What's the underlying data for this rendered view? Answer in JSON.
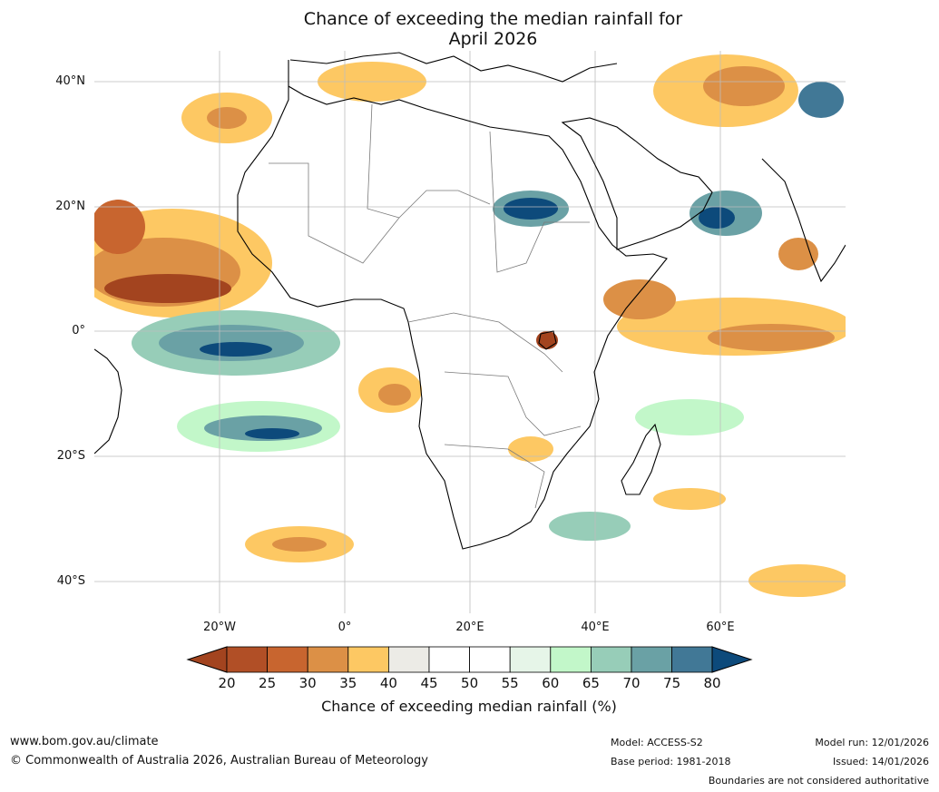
{
  "title": {
    "line1": "Chance of exceeding the median rainfall for",
    "line2": "April 2026"
  },
  "map": {
    "lat_labels": [
      "40°N",
      "20°N",
      "0°",
      "20°S",
      "40°S"
    ],
    "lon_labels": [
      "20°W",
      "0°",
      "20°E",
      "40°E",
      "60°E"
    ],
    "colors": {
      "ocean": "#ffffff",
      "grid": "#bdbdbd",
      "coast": "#000000",
      "border": "#7a7a7a",
      "dry_strong": "#a3441f",
      "dry_mid": "#c8652f",
      "dry_light": "#dc9046",
      "dry_pale": "#fdc863",
      "neutral": "#ecebe6",
      "wet_pale": "#e6f5e8",
      "wet_light": "#c2f7c9",
      "wet_mid": "#97cdb8",
      "wet_strong": "#6aa1a5",
      "wet_deep": "#417896",
      "wet_max": "#0d4a7b"
    }
  },
  "colorbar": {
    "ticks": [
      "20",
      "25",
      "30",
      "35",
      "40",
      "45",
      "50",
      "55",
      "60",
      "65",
      "70",
      "75",
      "80"
    ],
    "colors": [
      "#a3441f",
      "#b14f26",
      "#c8652f",
      "#dc9046",
      "#fdc863",
      "#ecebe6",
      "#ffffff",
      "#ffffff",
      "#e6f5e8",
      "#c2f7c9",
      "#97cdb8",
      "#6aa1a5",
      "#417896",
      "#0d4a7b"
    ],
    "label": "Chance of exceeding median rainfall (%)"
  },
  "footer": {
    "website": "www.bom.gov.au/climate",
    "copyright": "© Commonwealth of Australia 2026, Australian Bureau of Meteorology",
    "model": "Model: ACCESS-S2",
    "base_period": "Base period: 1981-2018",
    "model_run": "Model run: 12/01/2026",
    "issued": "Issued: 14/01/2026",
    "disclaimer": "Boundaries are not considered authoritative"
  }
}
